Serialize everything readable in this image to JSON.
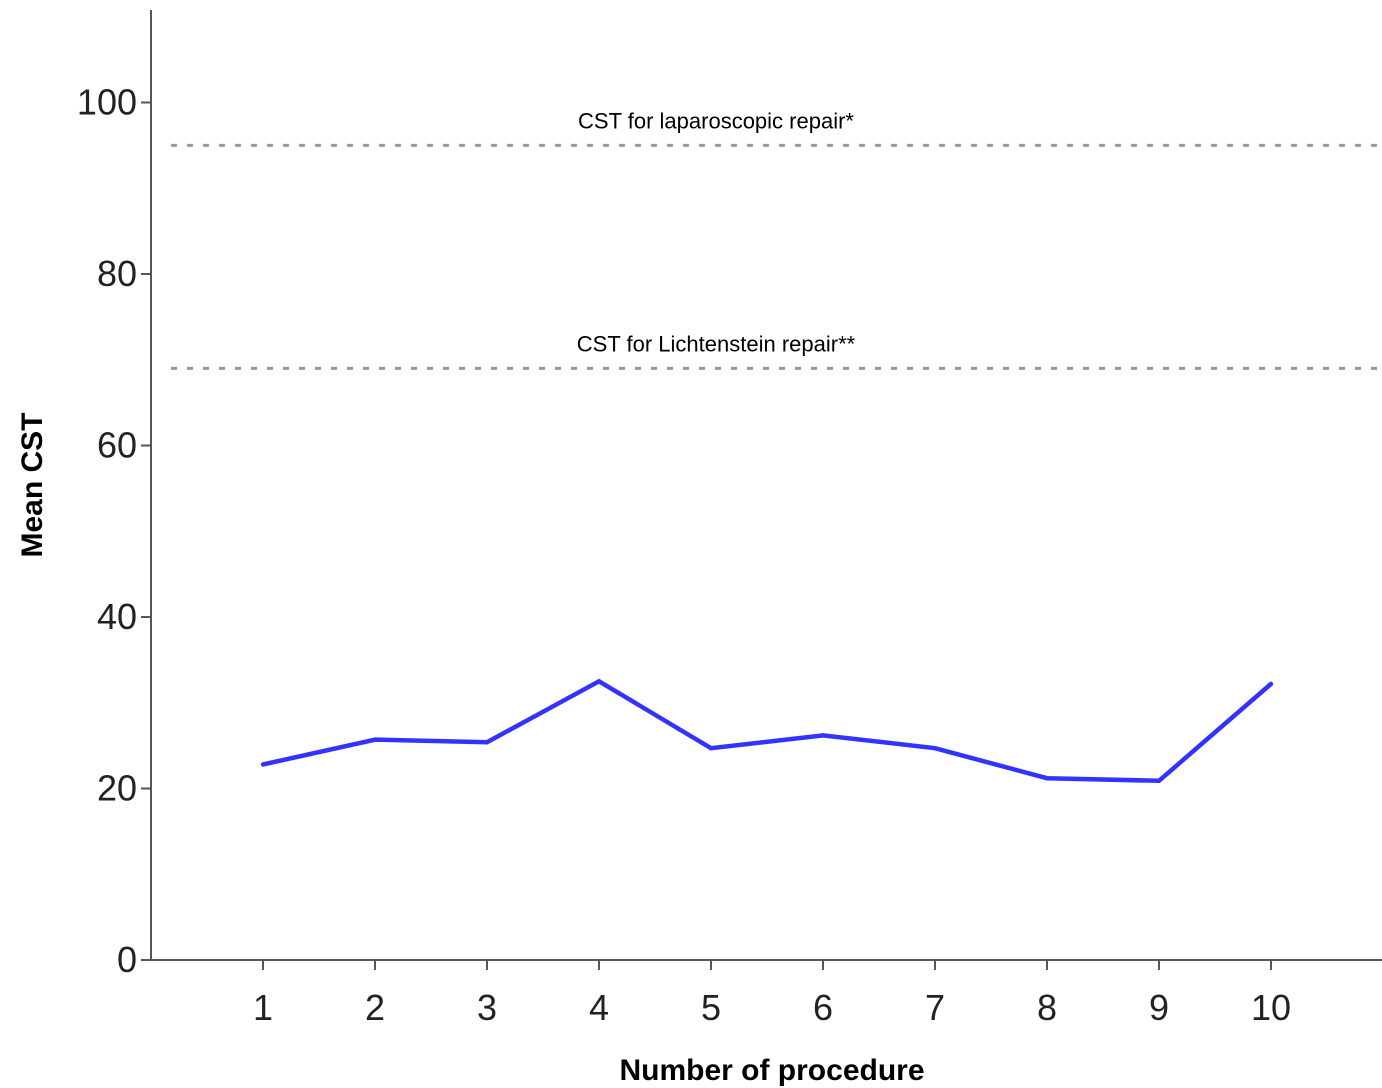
{
  "chart_data": {
    "type": "line",
    "title": "",
    "xlabel": "Number of procedure",
    "ylabel": "Mean CST",
    "categories": [
      "1",
      "2",
      "3",
      "4",
      "5",
      "6",
      "7",
      "8",
      "9",
      "10"
    ],
    "x": [
      1,
      2,
      3,
      4,
      5,
      6,
      7,
      8,
      9,
      10
    ],
    "series": [
      {
        "values": [
          22.8,
          25.7,
          25.4,
          32.5,
          24.7,
          26.2,
          24.7,
          21.2,
          20.9,
          32.2
        ],
        "color": "#3333ff"
      }
    ],
    "yticks": [
      0,
      20,
      40,
      60,
      80,
      100
    ],
    "ylim": [
      0,
      111
    ],
    "xlim": [
      0,
      10.95
    ],
    "grid": false,
    "reference_lines": [
      {
        "label": "CST for laparoscopic repair*",
        "value": 95,
        "style": "dotted",
        "color": "#999999"
      },
      {
        "label": "CST for Lichtenstein repair**",
        "value": 69,
        "style": "dotted",
        "color": "#999999"
      }
    ],
    "axis_color": "#555555"
  }
}
